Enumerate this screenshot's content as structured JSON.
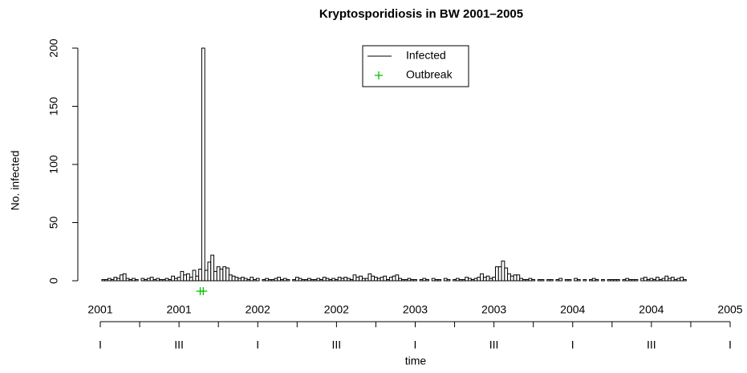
{
  "chart_data": {
    "type": "bar",
    "title": "Kryptosporidiosis in BW 2001–2005",
    "y_label": "No. infected",
    "x_label": "time",
    "values": [
      0,
      1,
      1,
      2,
      1,
      3,
      2,
      5,
      6,
      2,
      1,
      2,
      1,
      0,
      2,
      1,
      2,
      3,
      1,
      2,
      1,
      1,
      2,
      1,
      4,
      2,
      3,
      8,
      5,
      6,
      3,
      9,
      4,
      10,
      200,
      9,
      16,
      22,
      8,
      12,
      10,
      12,
      11,
      5,
      4,
      3,
      2,
      3,
      2,
      1,
      3,
      1,
      2,
      0,
      1,
      2,
      1,
      1,
      2,
      3,
      1,
      2,
      1,
      0,
      1,
      3,
      2,
      1,
      1,
      2,
      1,
      1,
      2,
      1,
      3,
      2,
      1,
      2,
      1,
      3,
      2,
      3,
      2,
      1,
      5,
      3,
      4,
      2,
      2,
      6,
      4,
      3,
      2,
      3,
      4,
      1,
      3,
      4,
      5,
      2,
      1,
      1,
      2,
      1,
      1,
      0,
      1,
      2,
      1,
      0,
      2,
      1,
      1,
      0,
      2,
      1,
      0,
      1,
      2,
      1,
      1,
      3,
      2,
      1,
      2,
      3,
      6,
      3,
      4,
      2,
      3,
      12,
      12,
      17,
      11,
      6,
      4,
      5,
      5,
      2,
      1,
      1,
      2,
      1,
      0,
      1,
      1,
      0,
      1,
      1,
      0,
      1,
      2,
      0,
      1,
      1,
      0,
      2,
      1,
      0,
      1,
      0,
      1,
      2,
      1,
      0,
      1,
      0,
      1,
      1,
      1,
      1,
      0,
      1,
      2,
      1,
      1,
      1,
      0,
      2,
      3,
      1,
      2,
      1,
      3,
      1,
      2,
      4,
      2,
      3,
      1,
      2,
      3,
      1,
      0,
      0,
      0,
      0,
      0,
      0,
      0,
      0,
      0,
      0,
      0,
      0,
      0,
      0,
      0
    ],
    "color": "#000000",
    "series_name": "Infected",
    "outbreak_name": "Outbreak",
    "outbreak_color": "#00c000",
    "outbreak_weeks": [
      34,
      35
    ],
    "xlim": [
      1,
      209
    ],
    "ylim": [
      0,
      200
    ],
    "yticks": [
      0,
      50,
      100,
      150,
      200
    ],
    "quarter_ticks": [
      1,
      14,
      27,
      40,
      53,
      66,
      79,
      92,
      105,
      118,
      131,
      144,
      157,
      170,
      183,
      196,
      209
    ],
    "year_ticks": [
      {
        "value": 1,
        "label": "2001"
      },
      {
        "value": 27,
        "label": "2001"
      },
      {
        "value": 53,
        "label": "2002"
      },
      {
        "value": 79,
        "label": "2002"
      },
      {
        "value": 105,
        "label": "2003"
      },
      {
        "value": 131,
        "label": "2003"
      },
      {
        "value": 157,
        "label": "2004"
      },
      {
        "value": 183,
        "label": "2004"
      },
      {
        "value": 209,
        "label": "2005"
      }
    ],
    "season_ticks": [
      {
        "value": 1,
        "label": "I"
      },
      {
        "value": 27,
        "label": "III"
      },
      {
        "value": 53,
        "label": "I"
      },
      {
        "value": 79,
        "label": "III"
      },
      {
        "value": 105,
        "label": "I"
      },
      {
        "value": 131,
        "label": "III"
      },
      {
        "value": 157,
        "label": "I"
      },
      {
        "value": 183,
        "label": "III"
      },
      {
        "value": 209,
        "label": "I"
      }
    ],
    "legend": "top"
  }
}
